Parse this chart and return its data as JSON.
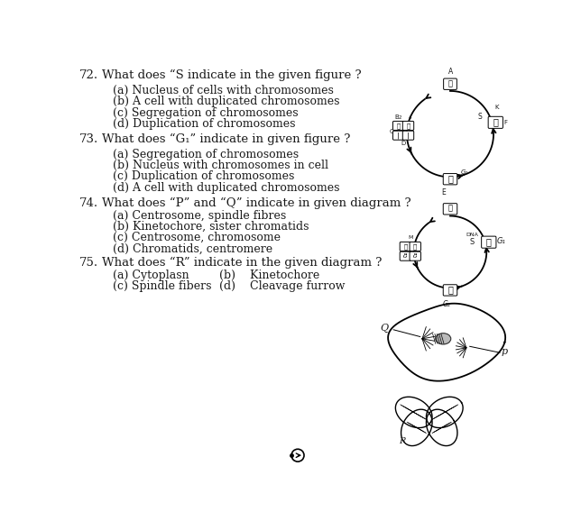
{
  "bg_color": "#ffffff",
  "text_color": "#1a1a1a",
  "questions": [
    {
      "num": "72.",
      "text": "What does “S indicate in the given figure ?",
      "options": [
        "(a) Nucleus of cells with chromosomes",
        "(b) A cell with duplicated chromosomes",
        "(c) Segregation of chromosomes",
        "(d) Duplication of chromosomes"
      ]
    },
    {
      "num": "73.",
      "text": "What does “G₁” indicate in given figure ?",
      "options": [
        "(a) Segregation of chromosomes",
        "(b) Nucleus with chromosomes in cell",
        "(c) Duplication of chromosomes",
        "(d) A cell with duplicated chromosomes"
      ]
    },
    {
      "num": "74.",
      "text": "What does “P” and “Q” indicate in given diagram ?",
      "options": [
        "(a) Centrosome, spindle fibres",
        "(b) Kinetochore, sister chromatids",
        "(c) Centrosome, chromosome",
        "(d) Chromatids, centromere"
      ]
    },
    {
      "num": "75.",
      "text": "What does “R” indicate in the given diagram ?",
      "options_inline": [
        [
          "(a) Cytoplasn",
          "(b)    Kinetochore"
        ],
        [
          "(c) Spindle fibers",
          "(d)    Cleavage furrow"
        ]
      ]
    }
  ],
  "font_size_q": 9.5,
  "font_size_opt": 9.0,
  "font_family": "DejaVu Serif"
}
